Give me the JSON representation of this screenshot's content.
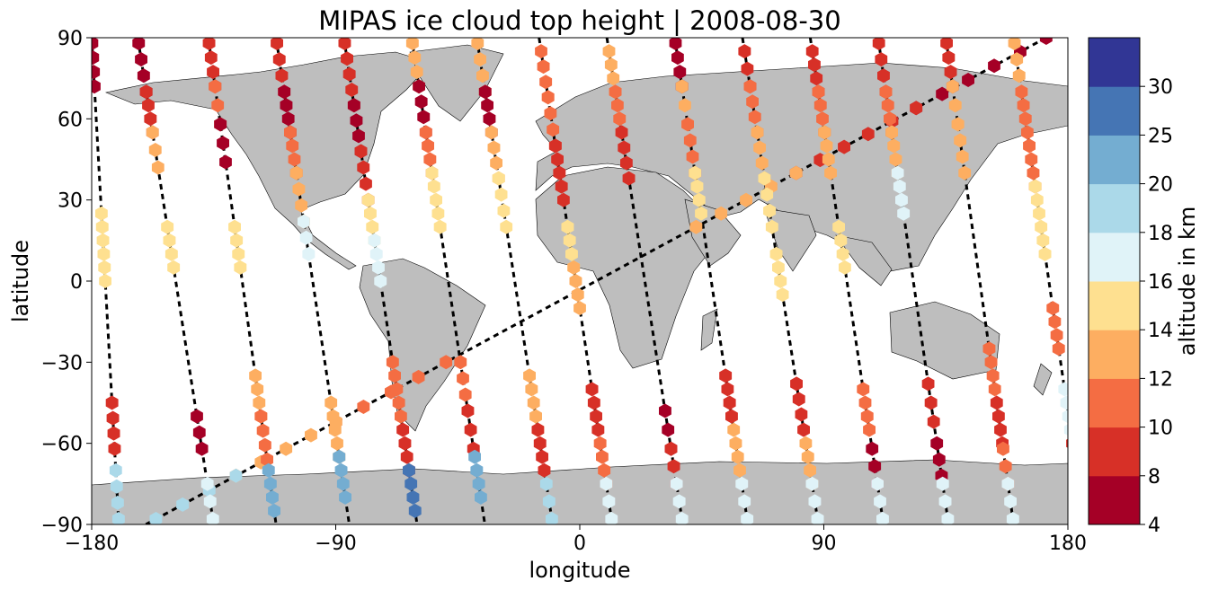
{
  "chart_data": {
    "type": "scatter",
    "title": "MIPAS ice cloud top height | 2008-08-30",
    "xlabel": "longitude",
    "ylabel": "latitude",
    "xlim": [
      -180,
      180
    ],
    "ylim": [
      -90,
      90
    ],
    "xticks": [
      "−180",
      "−90",
      "0",
      "90",
      "180"
    ],
    "yticks": [
      "90",
      "60",
      "30",
      "0",
      "−30",
      "−60",
      "−90"
    ],
    "colorbar": {
      "label": "altitude in km",
      "bounds": [
        4,
        8,
        10,
        12,
        14,
        16,
        18,
        20,
        25,
        30
      ],
      "tick_labels": [
        "4",
        "8",
        "10",
        "12",
        "14",
        "16",
        "18",
        "20",
        "25",
        "30"
      ],
      "colors": [
        "#a50026",
        "#d73027",
        "#f46d43",
        "#fdae61",
        "#fee090",
        "#e0f3f8",
        "#abd9e9",
        "#74add1",
        "#4575b4",
        "#313695"
      ]
    },
    "background": "coastlines over gray land (#bebebe); dashed black orbit tracks",
    "marker": "hexagon",
    "tracks": [
      {
        "lon_n": 172,
        "lon_s": -160,
        "segments": [
          [
            90,
            64,
            5
          ],
          [
            64,
            40,
            9
          ],
          [
            40,
            20,
            12
          ],
          [
            -30,
            -52,
            10
          ],
          [
            -52,
            -72,
            13
          ],
          [
            -72,
            -88,
            19
          ]
        ]
      },
      {
        "lon_n": -163,
        "lon_s": -135,
        "segments": [
          [
            88,
            70,
            7
          ],
          [
            70,
            55,
            9
          ],
          [
            55,
            42,
            12
          ],
          [
            20,
            5,
            15
          ],
          [
            -50,
            -62,
            6
          ],
          [
            -75,
            -88,
            17
          ]
        ]
      },
      {
        "lon_n": -137,
        "lon_s": -112,
        "segments": [
          [
            88,
            72,
            8
          ],
          [
            72,
            58,
            10
          ],
          [
            58,
            44,
            6
          ],
          [
            20,
            5,
            15
          ],
          [
            -35,
            -50,
            12
          ],
          [
            -50,
            -66,
            11
          ],
          [
            -70,
            -85,
            21
          ]
        ]
      },
      {
        "lon_n": -112,
        "lon_s": -85,
        "segments": [
          [
            88,
            70,
            9
          ],
          [
            70,
            55,
            6
          ],
          [
            55,
            40,
            10
          ],
          [
            40,
            22,
            13
          ],
          [
            22,
            10,
            17
          ],
          [
            -45,
            -65,
            13
          ],
          [
            -65,
            -80,
            22
          ]
        ]
      },
      {
        "lon_n": -87,
        "lon_s": -60,
        "segments": [
          [
            88,
            65,
            9
          ],
          [
            65,
            48,
            6
          ],
          [
            48,
            30,
            9
          ],
          [
            30,
            15,
            15
          ],
          [
            15,
            0,
            17
          ],
          [
            -30,
            -50,
            10
          ],
          [
            -55,
            -70,
            8
          ],
          [
            -70,
            -85,
            27
          ]
        ]
      },
      {
        "lon_n": -62,
        "lon_s": -35,
        "segments": [
          [
            88,
            72,
            13
          ],
          [
            72,
            55,
            6
          ],
          [
            55,
            40,
            10
          ],
          [
            40,
            20,
            15
          ],
          [
            -30,
            -48,
            11
          ],
          [
            -48,
            -62,
            9
          ],
          [
            -65,
            -80,
            23
          ]
        ]
      },
      {
        "lon_n": -38,
        "lon_s": -10,
        "segments": [
          [
            88,
            70,
            13
          ],
          [
            70,
            55,
            7
          ],
          [
            55,
            38,
            13
          ],
          [
            38,
            20,
            15
          ],
          [
            -35,
            -55,
            12
          ],
          [
            -55,
            -70,
            9
          ],
          [
            -75,
            -88,
            19
          ]
        ]
      },
      {
        "lon_n": -15,
        "lon_s": 12,
        "segments": [
          [
            85,
            68,
            11
          ],
          [
            68,
            50,
            11
          ],
          [
            50,
            30,
            9
          ],
          [
            20,
            5,
            15
          ],
          [
            5,
            -10,
            13
          ],
          [
            -40,
            -55,
            8
          ],
          [
            -60,
            -75,
            11
          ],
          [
            -75,
            -88,
            17
          ]
        ]
      },
      {
        "lon_n": 10,
        "lon_s": 38,
        "segments": [
          [
            85,
            70,
            13
          ],
          [
            70,
            55,
            11
          ],
          [
            55,
            38,
            9
          ],
          [
            -48,
            -62,
            7
          ],
          [
            -62,
            -75,
            9
          ],
          [
            -75,
            -88,
            16
          ]
        ]
      },
      {
        "lon_n": 35,
        "lon_s": 62,
        "segments": [
          [
            88,
            72,
            7
          ],
          [
            72,
            58,
            12
          ],
          [
            58,
            40,
            10
          ],
          [
            40,
            25,
            15
          ],
          [
            -35,
            -50,
            9
          ],
          [
            -55,
            -70,
            12
          ],
          [
            -75,
            -88,
            17
          ]
        ]
      },
      {
        "lon_n": 60,
        "lon_s": 88,
        "segments": [
          [
            85,
            72,
            8
          ],
          [
            72,
            55,
            10
          ],
          [
            55,
            38,
            13
          ],
          [
            38,
            20,
            15
          ],
          [
            10,
            -5,
            15
          ],
          [
            -38,
            -55,
            9
          ],
          [
            -60,
            -75,
            13
          ],
          [
            -75,
            -88,
            16
          ]
        ]
      },
      {
        "lon_n": 85,
        "lon_s": 112,
        "segments": [
          [
            85,
            70,
            9
          ],
          [
            70,
            55,
            11
          ],
          [
            55,
            40,
            13
          ],
          [
            20,
            5,
            15
          ],
          [
            -40,
            -55,
            10
          ],
          [
            -62,
            -75,
            7
          ],
          [
            -75,
            -88,
            17
          ]
        ]
      },
      {
        "lon_n": 110,
        "lon_s": 136,
        "segments": [
          [
            88,
            70,
            8
          ],
          [
            70,
            55,
            11
          ],
          [
            55,
            40,
            12
          ],
          [
            40,
            25,
            17
          ],
          [
            -38,
            -52,
            8
          ],
          [
            -60,
            -72,
            6
          ],
          [
            -75,
            -88,
            16
          ]
        ]
      },
      {
        "lon_n": 135,
        "lon_s": 160,
        "segments": [
          [
            88,
            72,
            9
          ],
          [
            72,
            58,
            12
          ],
          [
            58,
            40,
            13
          ],
          [
            -25,
            -40,
            11
          ],
          [
            -45,
            -60,
            9
          ],
          [
            -62,
            -75,
            11
          ],
          [
            -75,
            -88,
            16
          ]
        ]
      },
      {
        "lon_n": 160,
        "lon_s": 186,
        "segments": [
          [
            88,
            70,
            12
          ],
          [
            70,
            50,
            11
          ],
          [
            50,
            35,
            10
          ],
          [
            35,
            10,
            15
          ],
          [
            -10,
            -25,
            11
          ],
          [
            -40,
            -55,
            16
          ],
          [
            -60,
            -72,
            8
          ],
          [
            -75,
            -88,
            17
          ]
        ]
      },
      {
        "lon_n": -180,
        "lon_s": -170,
        "segments": [
          [
            88,
            72,
            6
          ],
          [
            25,
            0,
            15
          ],
          [
            -45,
            -62,
            8
          ],
          [
            -70,
            -88,
            19
          ]
        ]
      }
    ]
  }
}
